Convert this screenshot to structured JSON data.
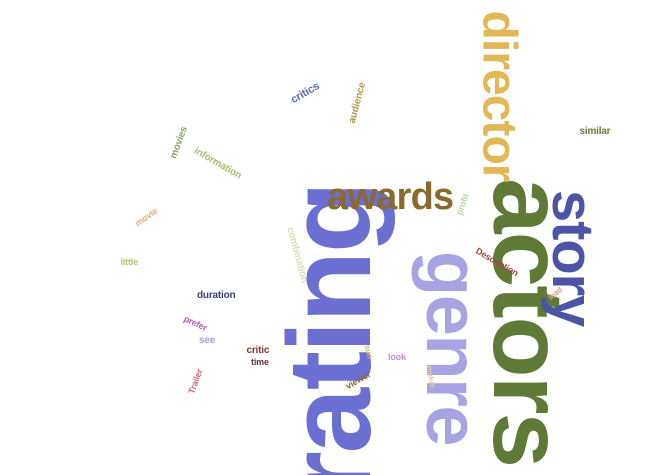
{
  "words": [
    {
      "id": "rating",
      "text": "rating",
      "color": "#6b6fd1"
    },
    {
      "id": "actors",
      "text": "actors",
      "color": "#5f7a37"
    },
    {
      "id": "genre",
      "text": "genre",
      "color": "#a8a3e3"
    },
    {
      "id": "story",
      "text": "story",
      "color": "#4c54a6"
    },
    {
      "id": "director",
      "text": "director",
      "color": "#e3b756"
    },
    {
      "id": "awards",
      "text": "awards",
      "color": "#8a6a2e"
    },
    {
      "id": "critics",
      "text": "critics",
      "color": "#5c69b8"
    },
    {
      "id": "audience",
      "text": "audience",
      "color": "#b39a4c"
    },
    {
      "id": "movies",
      "text": "movies",
      "color": "#8aa66a"
    },
    {
      "id": "information",
      "text": "information",
      "color": "#a6c26a"
    },
    {
      "id": "similar",
      "text": "similar",
      "color": "#6b7a3a"
    },
    {
      "id": "movie",
      "text": "movie",
      "color": "#e0b07a"
    },
    {
      "id": "profit",
      "text": "profit",
      "color": "#b8d8a0"
    },
    {
      "id": "combination",
      "text": "combination",
      "color": "#cfe3b3"
    },
    {
      "id": "description",
      "text": "Description",
      "color": "#9b4d3a"
    },
    {
      "id": "little",
      "text": "little",
      "color": "#aeca6e"
    },
    {
      "id": "lead",
      "text": "lead",
      "color": "#e89a88"
    },
    {
      "id": "duration",
      "text": "duration",
      "color": "#3a3f7a"
    },
    {
      "id": "prefer",
      "text": "prefer",
      "color": "#b45bb7"
    },
    {
      "id": "see",
      "text": "see",
      "color": "#9ca0dd"
    },
    {
      "id": "critic",
      "text": "critic",
      "color": "#7a3c2a"
    },
    {
      "id": "time",
      "text": "time",
      "color": "#6b2c3a"
    },
    {
      "id": "sun",
      "text": "sun",
      "color": "#d9b86a"
    },
    {
      "id": "look",
      "text": "look",
      "color": "#c98ad9"
    },
    {
      "id": "viewer",
      "text": "viewer",
      "color": "#8a6a2e"
    },
    {
      "id": "maker",
      "text": "maker",
      "color": "#e8c8a8"
    },
    {
      "id": "trailer",
      "text": "Trailer",
      "color": "#d06a78"
    }
  ]
}
